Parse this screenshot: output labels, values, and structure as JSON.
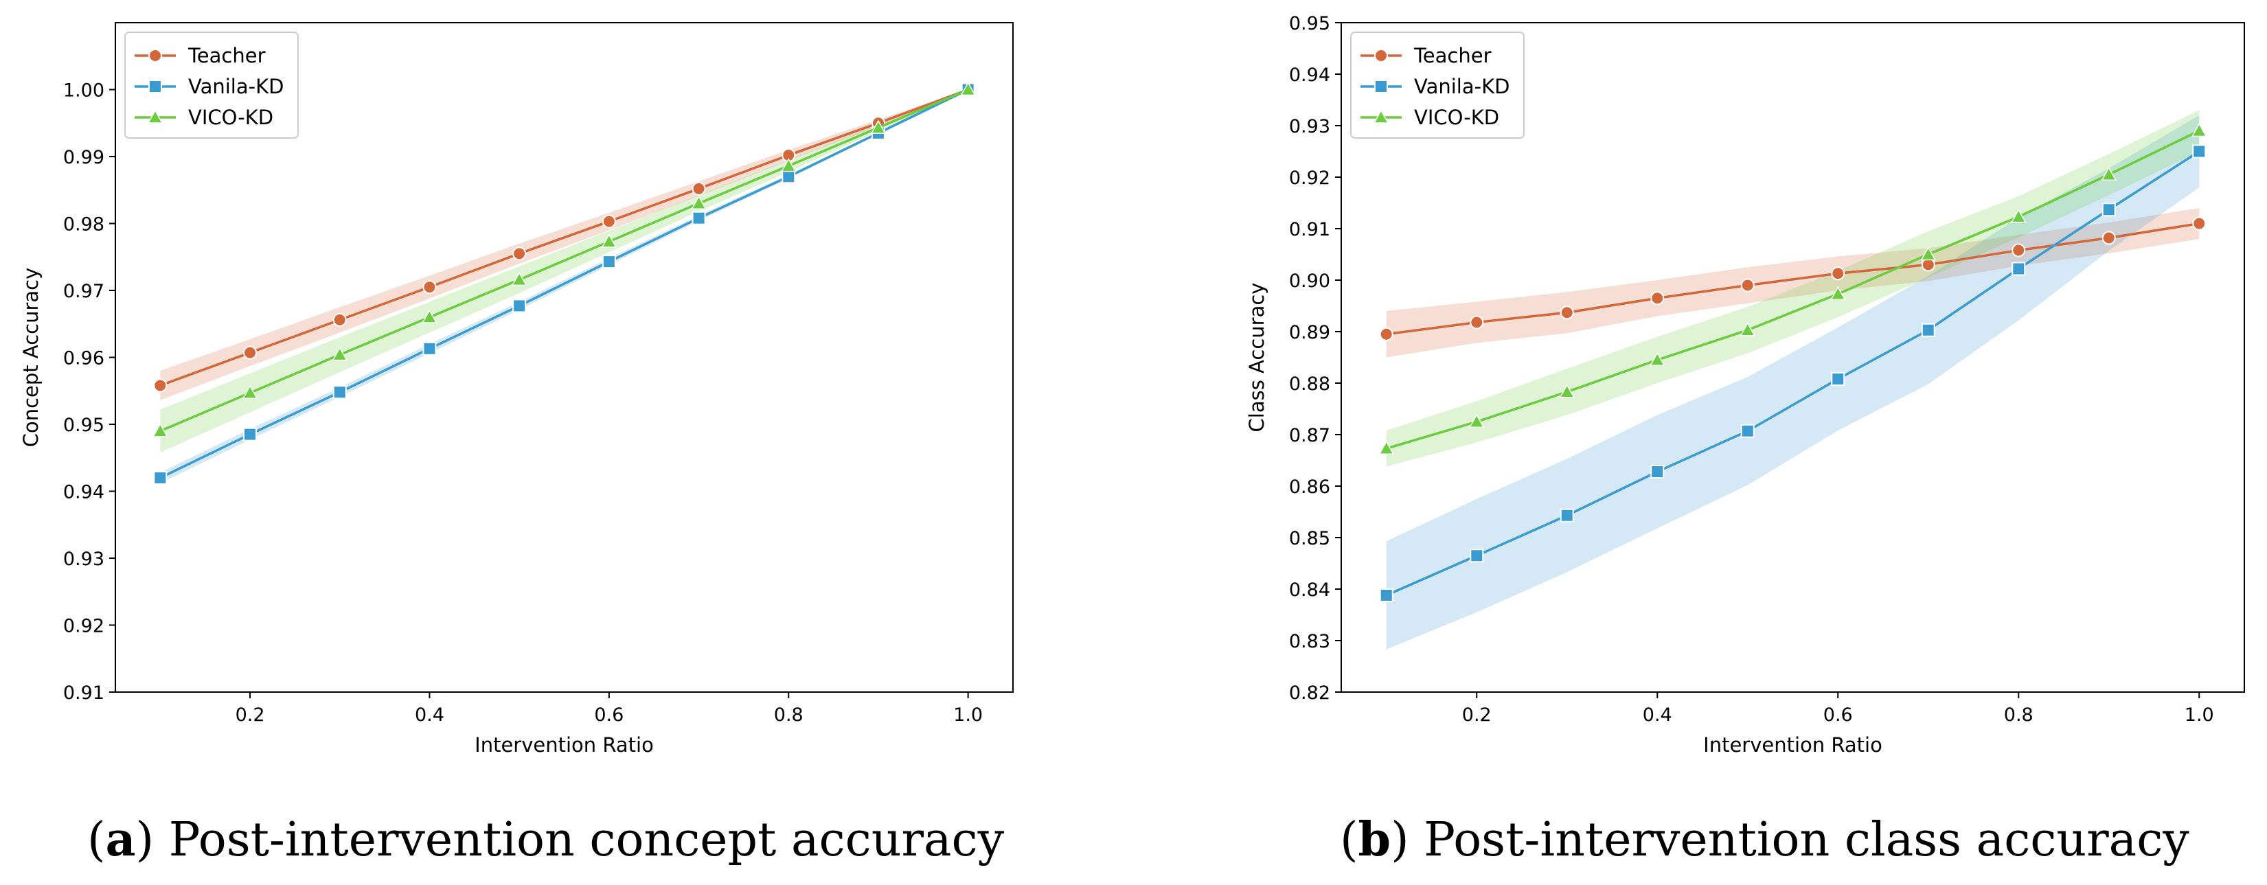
{
  "chart_data": [
    {
      "type": "line",
      "xlabel": "Intervention Ratio",
      "ylabel": "Concept Accuracy",
      "xlim": [
        0.05,
        1.05
      ],
      "ylim": [
        0.91,
        1.01
      ],
      "xticks": [
        0.2,
        0.4,
        0.6,
        0.8,
        1.0
      ],
      "xtick_labels": [
        "0.2",
        "0.4",
        "0.6",
        "0.8",
        "1.0"
      ],
      "yticks": [
        0.91,
        0.92,
        0.93,
        0.94,
        0.95,
        0.96,
        0.97,
        0.98,
        0.99,
        1.0
      ],
      "ytick_labels": [
        "0.91",
        "0.92",
        "0.93",
        "0.94",
        "0.95",
        "0.96",
        "0.97",
        "0.98",
        "0.99",
        "1.00"
      ],
      "legend_position": "top-left",
      "x": [
        0.1,
        0.2,
        0.3,
        0.4,
        0.5,
        0.6,
        0.7,
        0.8,
        0.9,
        1.0
      ],
      "series": [
        {
          "name": "Teacher",
          "color": "#d4673a",
          "marker": "circle",
          "values": [
            0.9558,
            0.9607,
            0.9656,
            0.9705,
            0.9755,
            0.9803,
            0.9852,
            0.9902,
            0.995,
            1.0
          ],
          "band": [
            0.0022,
            0.002,
            0.0019,
            0.0017,
            0.0015,
            0.0013,
            0.0011,
            0.0008,
            0.0005,
            0.0
          ]
        },
        {
          "name": "Vanila-KD",
          "color": "#3a9bd0",
          "marker": "square",
          "values": [
            0.942,
            0.9485,
            0.9548,
            0.9613,
            0.9677,
            0.9743,
            0.9808,
            0.987,
            0.9935,
            1.0
          ],
          "band": [
            0.0008,
            0.0008,
            0.0007,
            0.0007,
            0.0006,
            0.0005,
            0.0004,
            0.0003,
            0.0002,
            0.0
          ]
        },
        {
          "name": "VICO-KD",
          "color": "#6acc3e",
          "marker": "triangle",
          "values": [
            0.949,
            0.9547,
            0.9604,
            0.966,
            0.9716,
            0.9773,
            0.983,
            0.9886,
            0.9943,
            1.0
          ],
          "band": [
            0.0032,
            0.0029,
            0.0026,
            0.0023,
            0.002,
            0.0016,
            0.0012,
            0.0009,
            0.0005,
            0.0
          ]
        }
      ]
    },
    {
      "type": "line",
      "xlabel": "Intervention Ratio",
      "ylabel": "Class Accuracy",
      "xlim": [
        0.05,
        1.05
      ],
      "ylim": [
        0.82,
        0.95
      ],
      "xticks": [
        0.2,
        0.4,
        0.6,
        0.8,
        1.0
      ],
      "xtick_labels": [
        "0.2",
        "0.4",
        "0.6",
        "0.8",
        "1.0"
      ],
      "yticks": [
        0.82,
        0.83,
        0.84,
        0.85,
        0.86,
        0.87,
        0.88,
        0.89,
        0.9,
        0.91,
        0.92,
        0.93,
        0.94,
        0.95
      ],
      "ytick_labels": [
        "0.82",
        "0.83",
        "0.84",
        "0.85",
        "0.86",
        "0.87",
        "0.88",
        "0.89",
        "0.90",
        "0.91",
        "0.92",
        "0.93",
        "0.94",
        "0.95"
      ],
      "legend_position": "top-left",
      "x": [
        0.1,
        0.2,
        0.3,
        0.4,
        0.5,
        0.6,
        0.7,
        0.8,
        0.9,
        1.0
      ],
      "series": [
        {
          "name": "Teacher",
          "color": "#d4673a",
          "marker": "circle",
          "values": [
            0.8895,
            0.8918,
            0.8937,
            0.8965,
            0.899,
            0.9013,
            0.903,
            0.9058,
            0.9082,
            0.911
          ],
          "band": [
            0.0045,
            0.004,
            0.004,
            0.0035,
            0.0035,
            0.0033,
            0.0032,
            0.003,
            0.003,
            0.003
          ]
        },
        {
          "name": "Vanila-KD",
          "color": "#3a9bd0",
          "marker": "square",
          "values": [
            0.8388,
            0.8465,
            0.8543,
            0.8628,
            0.8707,
            0.8808,
            0.8903,
            0.9022,
            0.9137,
            0.925
          ],
          "band": [
            0.0105,
            0.011,
            0.011,
            0.011,
            0.0105,
            0.01,
            0.0105,
            0.01,
            0.008,
            0.007
          ]
        },
        {
          "name": "VICO-KD",
          "color": "#6acc3e",
          "marker": "triangle",
          "values": [
            0.8673,
            0.8725,
            0.8783,
            0.8845,
            0.8903,
            0.8973,
            0.905,
            0.9123,
            0.9205,
            0.929
          ],
          "band": [
            0.0035,
            0.004,
            0.0045,
            0.0045,
            0.0045,
            0.0045,
            0.0045,
            0.004,
            0.004,
            0.004
          ]
        }
      ]
    }
  ],
  "captions": [
    {
      "letter": "a",
      "text": "Post-intervention concept accuracy"
    },
    {
      "letter": "b",
      "text": "Post-intervention class accuracy"
    }
  ]
}
